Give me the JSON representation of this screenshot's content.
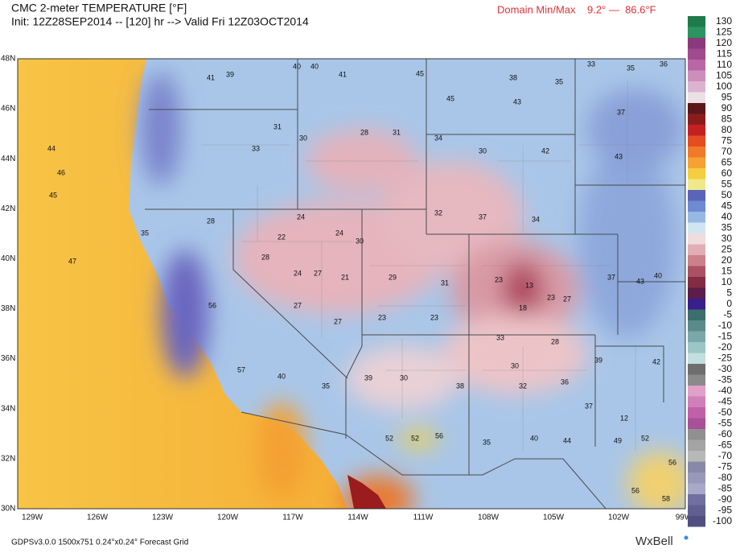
{
  "header": {
    "title": "CMC 2-meter TEMPERATURE [°F]",
    "init": "Init: 12Z28SEP2014 -- [120] hr --> Valid Fri 12Z03OCT2014",
    "minmax": "Domain Min/Max    9.2° —  86.6°F"
  },
  "lat_labels": [
    "48N",
    "46N",
    "44N",
    "42N",
    "40N",
    "38N",
    "36N",
    "34N",
    "32N",
    "30N"
  ],
  "lon_labels": [
    "129W",
    "126W",
    "123W",
    "120W",
    "117W",
    "114W",
    "111W",
    "108W",
    "105W",
    "102W",
    "99W"
  ],
  "colorbar": {
    "ticks": [
      130,
      125,
      120,
      115,
      110,
      105,
      100,
      95,
      90,
      85,
      80,
      75,
      70,
      65,
      60,
      55,
      50,
      45,
      40,
      35,
      30,
      25,
      20,
      15,
      10,
      5,
      0,
      -5,
      -10,
      -15,
      -20,
      -25,
      -30,
      -35,
      -40,
      -45,
      -50,
      -55,
      -60,
      -65,
      -70,
      -75,
      -80,
      -85,
      -90,
      -95,
      -100
    ],
    "colors": [
      "#1f7a4c",
      "#2c9460",
      "#8a3a7c",
      "#a04a90",
      "#b866a6",
      "#cc8fbc",
      "#dcb3cf",
      "#ece0e6",
      "#5c1818",
      "#8c1c1c",
      "#c42222",
      "#e44c22",
      "#f07a2a",
      "#f5a233",
      "#f5cd40",
      "#eee88a",
      "#5a64b8",
      "#6e8ad0",
      "#98b8e4",
      "#cfe6f2",
      "#f0dcdc",
      "#e2aeb6",
      "#cc808a",
      "#ac5064",
      "#842c44",
      "#5c1c4c",
      "#3a1e8a",
      "#3c6e6e",
      "#5a8a8a",
      "#7aa8a8",
      "#9cc6c6",
      "#c2dede",
      "#6e6e6e",
      "#8a8a8a",
      "#e0a0c8",
      "#d080b8",
      "#c060a8",
      "#a85098",
      "#909090",
      "#a4a4a4",
      "#b8b8b8",
      "#8888a8",
      "#9898b8",
      "#a8a8c8",
      "#7070a0",
      "#606090",
      "#505080"
    ]
  },
  "stations": [
    41,
    39,
    40,
    40,
    41,
    45,
    38,
    35,
    33,
    35,
    36,
    45,
    43,
    37,
    31,
    30,
    33,
    28,
    31,
    34,
    30,
    42,
    43,
    44,
    46,
    45,
    28,
    24,
    22,
    24,
    30,
    32,
    37,
    34,
    28,
    24,
    27,
    21,
    29,
    31,
    13,
    23,
    18,
    23,
    27,
    37,
    43,
    40,
    27,
    27,
    23,
    23,
    33,
    28,
    30,
    39,
    42,
    40,
    35,
    39,
    30,
    38,
    32,
    36,
    37,
    12,
    52,
    56,
    52,
    35,
    40,
    44,
    49,
    52,
    56,
    56,
    58,
    57,
    56,
    35,
    47
  ],
  "footer": {
    "grid": "GDPSv3.0.0 1500x751 0.24°x0.24° Forecast Grid",
    "logo": "WxBell"
  }
}
